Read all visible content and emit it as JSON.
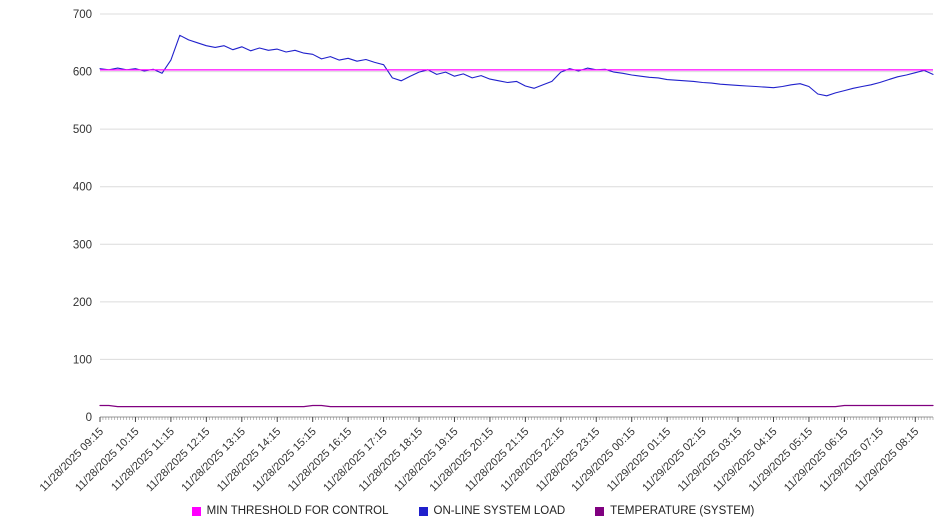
{
  "chart_data": {
    "type": "line",
    "title": "",
    "xlabel": "",
    "ylabel": "",
    "ylim": [
      0,
      700
    ],
    "grid": "horizontal",
    "legend_position": "bottom",
    "y_ticks": [
      0,
      100,
      200,
      300,
      400,
      500,
      600,
      700
    ],
    "x_tick_labels": [
      "11/28/2025 09:15",
      "11/28/2025 10:15",
      "11/28/2025 11:15",
      "11/28/2025 12:15",
      "11/28/2025 13:15",
      "11/28/2025 14:15",
      "11/28/2025 15:15",
      "11/28/2025 16:15",
      "11/28/2025 17:15",
      "11/28/2025 18:15",
      "11/28/2025 19:15",
      "11/28/2025 20:15",
      "11/28/2025 21:15",
      "11/28/2025 22:15",
      "11/28/2025 23:15",
      "11/29/2025 00:15",
      "11/29/2025 01:15",
      "11/29/2025 02:15",
      "11/29/2025 03:15",
      "11/29/2025 04:15",
      "11/29/2025 05:15",
      "11/29/2025 06:15",
      "11/29/2025 07:15",
      "11/29/2025 08:15"
    ],
    "points_per_hour": 4,
    "series": [
      {
        "name": "MIN THRESHOLD FOR CONTROL",
        "color": "#ff00ff",
        "style": "constant",
        "value": 603
      },
      {
        "name": "ON-LINE SYSTEM LOAD",
        "color": "#2020cc",
        "values": [
          605,
          603,
          606,
          603,
          605,
          601,
          604,
          597,
          620,
          663,
          655,
          650,
          645,
          642,
          645,
          638,
          643,
          636,
          641,
          637,
          639,
          634,
          637,
          632,
          630,
          622,
          626,
          620,
          623,
          618,
          621,
          616,
          612,
          589,
          584,
          592,
          599,
          603,
          595,
          599,
          592,
          596,
          589,
          593,
          587,
          584,
          581,
          583,
          575,
          571,
          577,
          583,
          599,
          605,
          601,
          606,
          603,
          604,
          599,
          597,
          594,
          592,
          590,
          589,
          586,
          585,
          584,
          583,
          581,
          580,
          578,
          577,
          576,
          575,
          574,
          573,
          572,
          574,
          577,
          579,
          574,
          561,
          558,
          563,
          567,
          571,
          574,
          577,
          581,
          586,
          591,
          594,
          598,
          602,
          595
        ]
      },
      {
        "name": "TEMPERATURE (SYSTEM)",
        "color": "#800080",
        "values": [
          20,
          20,
          18,
          18,
          18,
          18,
          18,
          18,
          18,
          18,
          18,
          18,
          18,
          18,
          18,
          18,
          18,
          18,
          18,
          18,
          18,
          18,
          18,
          18,
          20,
          20,
          18,
          18,
          18,
          18,
          18,
          18,
          18,
          18,
          18,
          18,
          18,
          18,
          18,
          18,
          18,
          18,
          18,
          18,
          18,
          18,
          18,
          18,
          18,
          18,
          18,
          18,
          18,
          18,
          18,
          18,
          18,
          18,
          18,
          18,
          18,
          18,
          18,
          18,
          18,
          18,
          18,
          18,
          18,
          18,
          18,
          18,
          18,
          18,
          18,
          18,
          18,
          18,
          18,
          18,
          18,
          18,
          18,
          18,
          20,
          20,
          20,
          20,
          20,
          20,
          20,
          20,
          20,
          20,
          20
        ]
      }
    ],
    "legend": [
      {
        "label": "MIN THRESHOLD FOR CONTROL",
        "color": "#ff00ff"
      },
      {
        "label": "ON-LINE SYSTEM LOAD",
        "color": "#2020cc"
      },
      {
        "label": "TEMPERATURE (SYSTEM)",
        "color": "#800080"
      }
    ]
  }
}
